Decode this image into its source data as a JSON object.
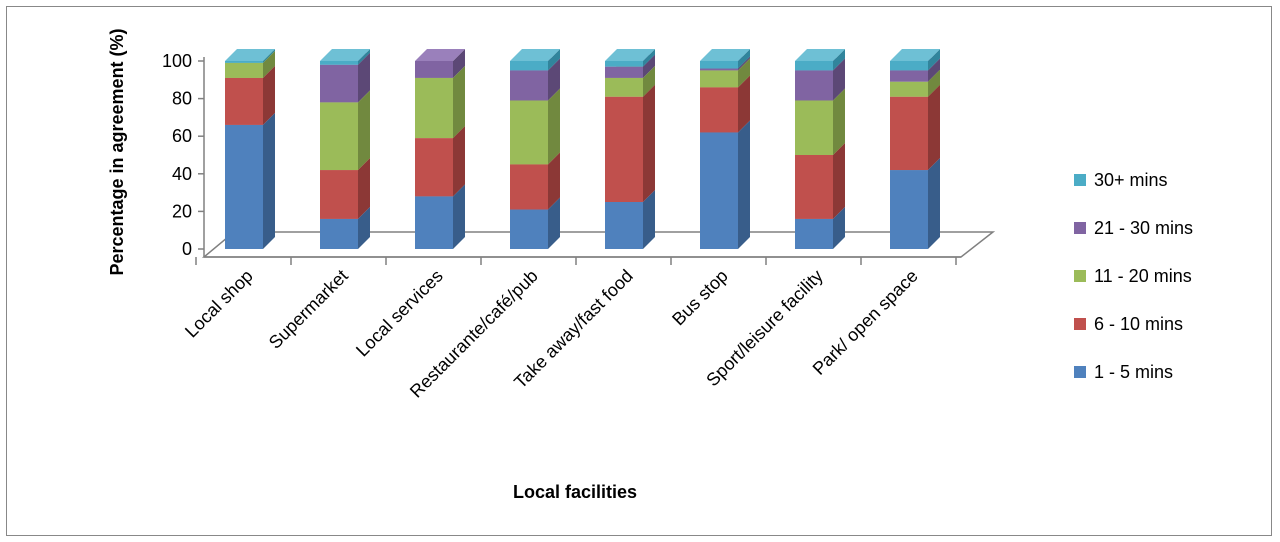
{
  "chart_data": {
    "type": "bar",
    "stacked": true,
    "style": "3d-column",
    "title": "",
    "xlabel": "Local facilities",
    "ylabel": "Percentage in agreement  (%)",
    "ylim": [
      0,
      100
    ],
    "yticks": [
      "0",
      "20",
      "40",
      "60",
      "80",
      "100"
    ],
    "categories": [
      "Local shop",
      "Supermarket",
      "Local services",
      "Restaurante/café/pub",
      "Take away/fast food",
      "Bus stop",
      "Sport/leisure facility",
      "Park/ open space"
    ],
    "series": [
      {
        "name": "1 - 5 mins",
        "color": "#4f81bd",
        "top": "#6f9bd1",
        "side": "#385d8a",
        "values": [
          66,
          16,
          28,
          21,
          25,
          62,
          16,
          42
        ]
      },
      {
        "name": "6 - 10 mins",
        "color": "#c0504d",
        "top": "#d16f6c",
        "side": "#8c3836",
        "values": [
          25,
          26,
          31,
          24,
          56,
          24,
          34,
          39
        ]
      },
      {
        "name": "11 - 20 mins",
        "color": "#9bbb59",
        "top": "#b2cf79",
        "side": "#71893f",
        "values": [
          8,
          36,
          32,
          34,
          10,
          9,
          29,
          8
        ]
      },
      {
        "name": "21 - 30 mins",
        "color": "#8064a2",
        "top": "#9a80bb",
        "side": "#5c4876",
        "values": [
          0,
          20,
          9,
          16,
          6,
          1,
          16,
          6
        ]
      },
      {
        "name": "30+ mins",
        "color": "#4bacc6",
        "top": "#6ec0d5",
        "side": "#31859c",
        "values": [
          1,
          2,
          0,
          5,
          3,
          4,
          5,
          5
        ]
      }
    ],
    "legend_position": "right",
    "grid": false
  }
}
